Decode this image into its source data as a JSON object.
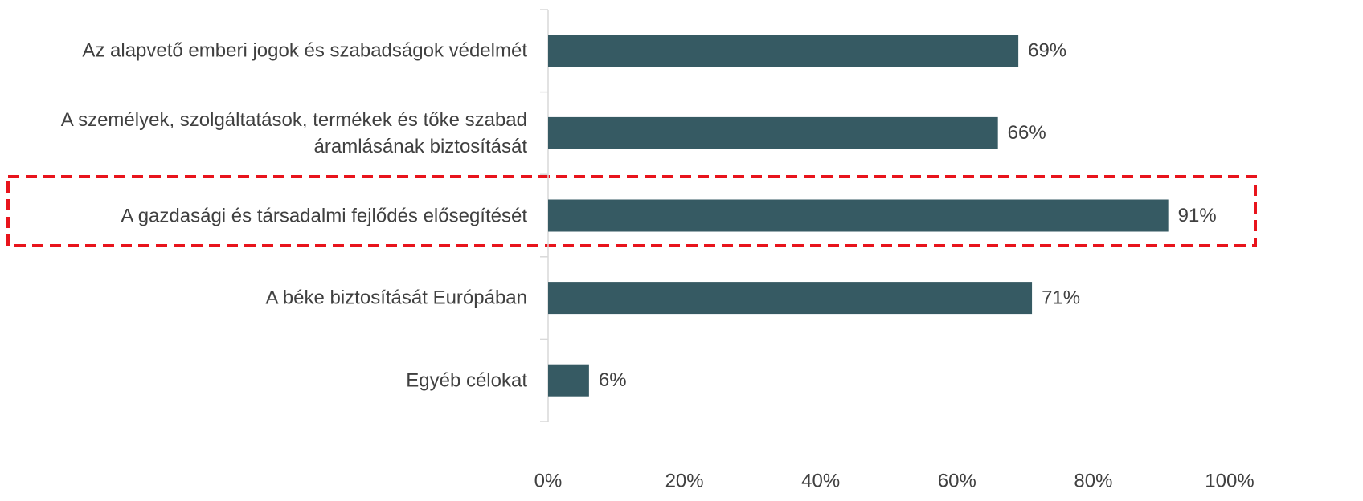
{
  "chart_data": {
    "type": "bar",
    "orientation": "horizontal",
    "categories": [
      "Az alapvető emberi jogok és szabadságok védelmét",
      "A személyek, szolgáltatások, termékek és tőke szabad\náramlásának biztosítását",
      "A gazdasági és társadalmi fejlődés elősegítését",
      "A béke biztosítását Európában",
      "Egyéb célokat"
    ],
    "values": [
      69,
      66,
      91,
      71,
      6
    ],
    "value_labels": [
      "69%",
      "66%",
      "91%",
      "71%",
      "6%"
    ],
    "color": "#365a63",
    "xlim": [
      0,
      100
    ],
    "xticks": [
      {
        "value": 0,
        "label": "0%"
      },
      {
        "value": 20,
        "label": "20%"
      },
      {
        "value": 40,
        "label": "40%"
      },
      {
        "value": 60,
        "label": "60%"
      },
      {
        "value": 80,
        "label": "80%"
      },
      {
        "value": 100,
        "label": "100%"
      }
    ],
    "grid": false
  }
}
